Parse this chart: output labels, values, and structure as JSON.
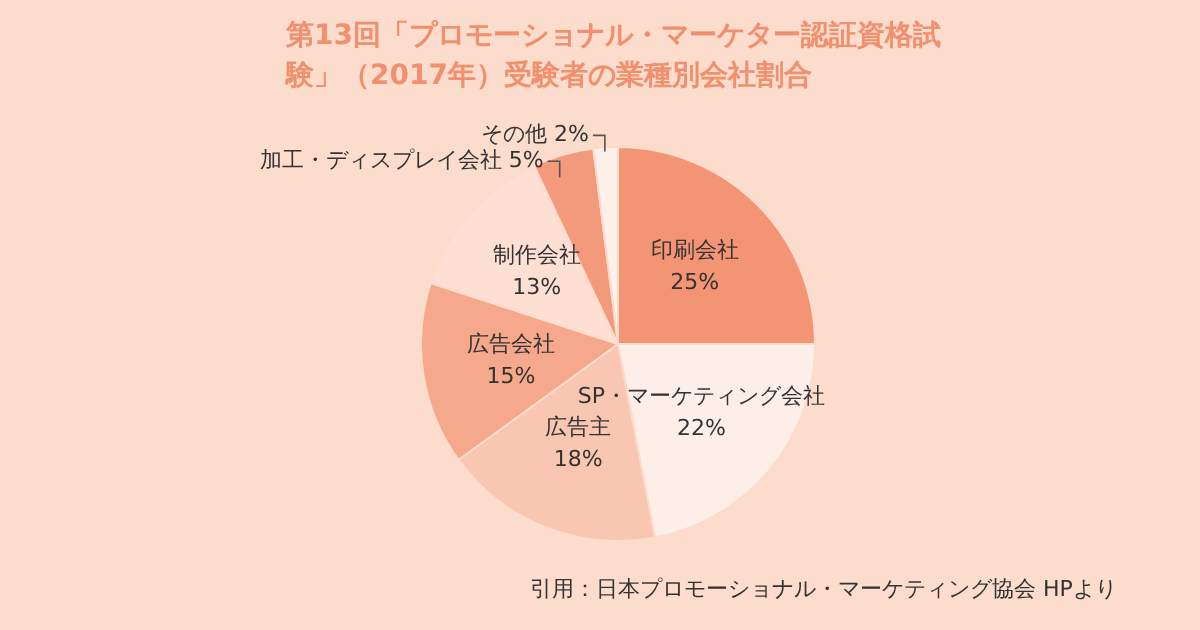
{
  "chart_data": {
    "type": "pie",
    "title": "第13回「プロモーショナル・マーケター認証資格試験」（2017年）受験者の業種別会社割合",
    "categories": [
      "印刷会社",
      "SP・マーケティング会社",
      "広告主",
      "広告会社",
      "制作会社",
      "加工・ディスプレイ会社",
      "その他"
    ],
    "values": [
      25,
      22,
      18,
      15,
      13,
      5,
      2
    ],
    "colors": [
      "#f39474",
      "#fdefe8",
      "#f9c7b1",
      "#f5a88b",
      "#fde0d3",
      "#f39a7d",
      "#fff1ea"
    ],
    "value_labels": [
      "25%",
      "22%",
      "18%",
      "15%",
      "13%",
      "5%",
      "2%"
    ],
    "legend": false,
    "annotations": [
      "引用：日本プロモーショナル・マーケティング協会 HPより"
    ]
  }
}
